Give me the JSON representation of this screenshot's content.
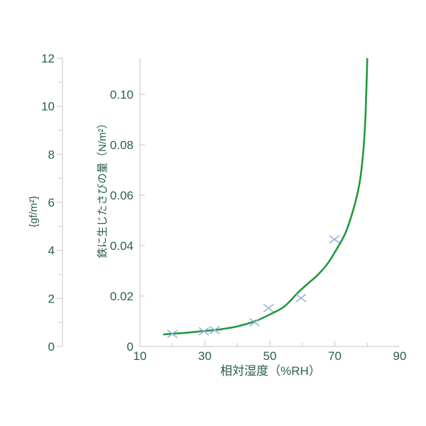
{
  "chart_data": {
    "type": "line",
    "title": "",
    "grid": false,
    "legend": false,
    "axes": {
      "x": {
        "label": "相対湿度（%RH）",
        "min": 10,
        "max": 90,
        "tick_values": [
          10,
          30,
          50,
          70,
          90
        ],
        "tick_labels": [
          "10",
          "30",
          "50",
          "70",
          "90"
        ],
        "minor_tick_values": [
          20,
          30,
          40,
          50,
          60,
          70,
          80
        ]
      },
      "y_inner": {
        "label": "鉄に生じたさびの量（N/m²）",
        "unit": "N/m²",
        "min": 0,
        "max": 0.114,
        "tick_values": [
          0,
          0.02,
          0.04,
          0.06,
          0.08,
          0.1
        ],
        "tick_labels": [
          "0",
          "0.02",
          "0.04",
          "0.06",
          "0.08",
          "0.10"
        ]
      },
      "y_outer": {
        "label": "{gf/m²}",
        "unit": "gf/m²",
        "min": 0,
        "max": 12,
        "tick_values": [
          0,
          2,
          4,
          6,
          8,
          10,
          12
        ],
        "tick_labels": [
          "0",
          "2",
          "4",
          "6",
          "8",
          "10",
          "12"
        ],
        "minor_tick_values": [
          1,
          3,
          5,
          7,
          9,
          11
        ]
      }
    },
    "series": [
      {
        "kind": "curve",
        "color": "#21993f",
        "points": [
          [
            17.4,
            0.0048
          ],
          [
            20.3,
            0.0051
          ],
          [
            23.8,
            0.0054
          ],
          [
            30.1,
            0.0062
          ],
          [
            34.7,
            0.0068
          ],
          [
            39.7,
            0.0079
          ],
          [
            45.6,
            0.0101
          ],
          [
            50.0,
            0.0127
          ],
          [
            54.4,
            0.0158
          ],
          [
            58.7,
            0.0214
          ],
          [
            61.6,
            0.0248
          ],
          [
            64.6,
            0.0282
          ],
          [
            67.5,
            0.0324
          ],
          [
            70.3,
            0.038
          ],
          [
            73.4,
            0.0454
          ],
          [
            76.2,
            0.0566
          ],
          [
            77.8,
            0.0662
          ],
          [
            78.9,
            0.0792
          ],
          [
            79.5,
            0.0932
          ],
          [
            80.0,
            0.1141
          ]
        ]
      },
      {
        "kind": "scatter",
        "marker": "x",
        "color": "#92abdc",
        "points": [
          [
            20.0,
            0.005
          ],
          [
            29.7,
            0.006
          ],
          [
            33.0,
            0.0065
          ],
          [
            45.3,
            0.0096
          ],
          [
            49.6,
            0.0152
          ],
          [
            59.6,
            0.0192
          ],
          [
            69.9,
            0.0425
          ]
        ]
      }
    ],
    "style": {
      "background": "#ffffff",
      "axis_color": "#cdd0cd",
      "text_color": "#2c5e4c"
    }
  }
}
